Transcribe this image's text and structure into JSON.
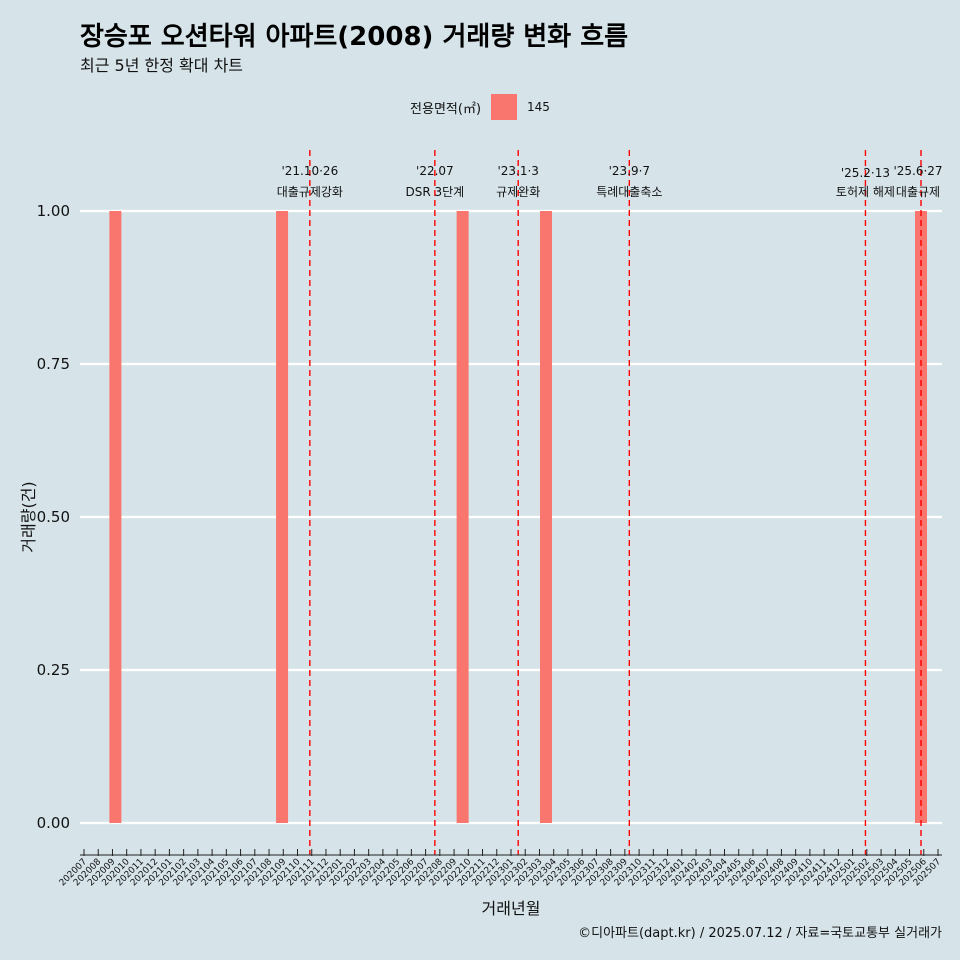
{
  "header": {
    "title": "장승포 오션타워 아파트(2008) 거래량 변화 흐름",
    "subtitle": "최근 5년 한정 확대 차트"
  },
  "legend": {
    "title": "전용면적(㎡)",
    "label": "145"
  },
  "caption": "©디아파트(dapt.kr) / 2025.07.12 / 자료=국토교통부 실거래가",
  "colors": {
    "background": "#d6e4ea",
    "bar": "#f8766d",
    "event_line": "#ff0000",
    "grid": "#ffffff"
  },
  "chart_data": {
    "type": "bar",
    "xlabel": "거래년월",
    "ylabel": "거래량(건)",
    "ylim": [
      0,
      1
    ],
    "yticks": [
      "0.00",
      "0.25",
      "0.50",
      "0.75",
      "1.00"
    ],
    "categories": [
      "202007",
      "202008",
      "202009",
      "202010",
      "202011",
      "202012",
      "202101",
      "202102",
      "202103",
      "202104",
      "202105",
      "202106",
      "202107",
      "202108",
      "202109",
      "202110",
      "202111",
      "202112",
      "202201",
      "202202",
      "202203",
      "202204",
      "202205",
      "202206",
      "202207",
      "202208",
      "202209",
      "202210",
      "202211",
      "202212",
      "202301",
      "202302",
      "202303",
      "202304",
      "202305",
      "202306",
      "202307",
      "202308",
      "202309",
      "202310",
      "202311",
      "202312",
      "202401",
      "202402",
      "202403",
      "202404",
      "202405",
      "202406",
      "202407",
      "202408",
      "202409",
      "202410",
      "202411",
      "202412",
      "202501",
      "202502",
      "202503",
      "202504",
      "202505",
      "202506",
      "202507"
    ],
    "series": [
      {
        "name": "145",
        "values": [
          {
            "x": "202008",
            "y": 1
          },
          {
            "x": "202108",
            "y": 1
          },
          {
            "x": "202209",
            "y": 1
          },
          {
            "x": "202303",
            "y": 1
          },
          {
            "x": "202506",
            "y": 1
          }
        ]
      }
    ],
    "annotations": [
      {
        "x": "202110",
        "line1": "'21.10·26",
        "line2": "대출규제강화"
      },
      {
        "x": "202207",
        "line1": "'22.07",
        "line2": "DSR 3단계"
      },
      {
        "x": "202301",
        "line1": "'23.1·3",
        "line2": "규제완화"
      },
      {
        "x": "202309",
        "line1": "'23.9·7",
        "line2": "특례대출축소"
      },
      {
        "x": "202502",
        "line1": "'25.2·13",
        "line2": "토허제 해제"
      },
      {
        "x": "202506",
        "line1": "'25.6·27",
        "line2": "대출규제"
      }
    ],
    "grid": true,
    "legend_position": "top"
  }
}
